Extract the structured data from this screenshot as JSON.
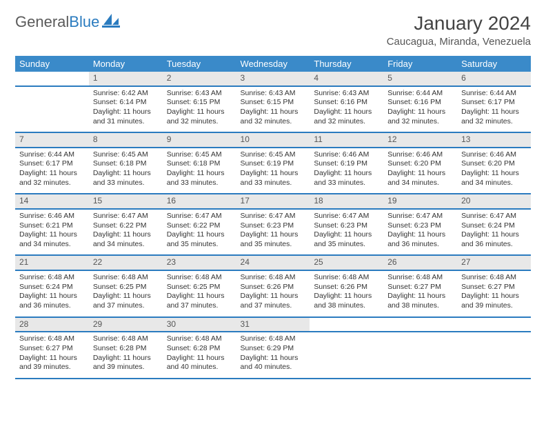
{
  "logo": {
    "word1": "General",
    "word2": "Blue"
  },
  "title": "January 2024",
  "location": "Caucagua, Miranda, Venezuela",
  "header_bg": "#3a8ac9",
  "accent_line": "#2a7bbf",
  "grey_bg": "#e8e8e8",
  "day_headers": [
    "Sunday",
    "Monday",
    "Tuesday",
    "Wednesday",
    "Thursday",
    "Friday",
    "Saturday"
  ],
  "font_size_body": 10.5,
  "font_size_header": 13,
  "weeks": [
    {
      "nums": [
        "",
        "1",
        "2",
        "3",
        "4",
        "5",
        "6"
      ],
      "cells": [
        null,
        {
          "sunrise": "6:42 AM",
          "sunset": "6:14 PM",
          "daylight": "11 hours and 31 minutes."
        },
        {
          "sunrise": "6:43 AM",
          "sunset": "6:15 PM",
          "daylight": "11 hours and 32 minutes."
        },
        {
          "sunrise": "6:43 AM",
          "sunset": "6:15 PM",
          "daylight": "11 hours and 32 minutes."
        },
        {
          "sunrise": "6:43 AM",
          "sunset": "6:16 PM",
          "daylight": "11 hours and 32 minutes."
        },
        {
          "sunrise": "6:44 AM",
          "sunset": "6:16 PM",
          "daylight": "11 hours and 32 minutes."
        },
        {
          "sunrise": "6:44 AM",
          "sunset": "6:17 PM",
          "daylight": "11 hours and 32 minutes."
        }
      ]
    },
    {
      "nums": [
        "7",
        "8",
        "9",
        "10",
        "11",
        "12",
        "13"
      ],
      "cells": [
        {
          "sunrise": "6:44 AM",
          "sunset": "6:17 PM",
          "daylight": "11 hours and 32 minutes."
        },
        {
          "sunrise": "6:45 AM",
          "sunset": "6:18 PM",
          "daylight": "11 hours and 33 minutes."
        },
        {
          "sunrise": "6:45 AM",
          "sunset": "6:18 PM",
          "daylight": "11 hours and 33 minutes."
        },
        {
          "sunrise": "6:45 AM",
          "sunset": "6:19 PM",
          "daylight": "11 hours and 33 minutes."
        },
        {
          "sunrise": "6:46 AM",
          "sunset": "6:19 PM",
          "daylight": "11 hours and 33 minutes."
        },
        {
          "sunrise": "6:46 AM",
          "sunset": "6:20 PM",
          "daylight": "11 hours and 34 minutes."
        },
        {
          "sunrise": "6:46 AM",
          "sunset": "6:20 PM",
          "daylight": "11 hours and 34 minutes."
        }
      ]
    },
    {
      "nums": [
        "14",
        "15",
        "16",
        "17",
        "18",
        "19",
        "20"
      ],
      "cells": [
        {
          "sunrise": "6:46 AM",
          "sunset": "6:21 PM",
          "daylight": "11 hours and 34 minutes."
        },
        {
          "sunrise": "6:47 AM",
          "sunset": "6:22 PM",
          "daylight": "11 hours and 34 minutes."
        },
        {
          "sunrise": "6:47 AM",
          "sunset": "6:22 PM",
          "daylight": "11 hours and 35 minutes."
        },
        {
          "sunrise": "6:47 AM",
          "sunset": "6:23 PM",
          "daylight": "11 hours and 35 minutes."
        },
        {
          "sunrise": "6:47 AM",
          "sunset": "6:23 PM",
          "daylight": "11 hours and 35 minutes."
        },
        {
          "sunrise": "6:47 AM",
          "sunset": "6:23 PM",
          "daylight": "11 hours and 36 minutes."
        },
        {
          "sunrise": "6:47 AM",
          "sunset": "6:24 PM",
          "daylight": "11 hours and 36 minutes."
        }
      ]
    },
    {
      "nums": [
        "21",
        "22",
        "23",
        "24",
        "25",
        "26",
        "27"
      ],
      "cells": [
        {
          "sunrise": "6:48 AM",
          "sunset": "6:24 PM",
          "daylight": "11 hours and 36 minutes."
        },
        {
          "sunrise": "6:48 AM",
          "sunset": "6:25 PM",
          "daylight": "11 hours and 37 minutes."
        },
        {
          "sunrise": "6:48 AM",
          "sunset": "6:25 PM",
          "daylight": "11 hours and 37 minutes."
        },
        {
          "sunrise": "6:48 AM",
          "sunset": "6:26 PM",
          "daylight": "11 hours and 37 minutes."
        },
        {
          "sunrise": "6:48 AM",
          "sunset": "6:26 PM",
          "daylight": "11 hours and 38 minutes."
        },
        {
          "sunrise": "6:48 AM",
          "sunset": "6:27 PM",
          "daylight": "11 hours and 38 minutes."
        },
        {
          "sunrise": "6:48 AM",
          "sunset": "6:27 PM",
          "daylight": "11 hours and 39 minutes."
        }
      ]
    },
    {
      "nums": [
        "28",
        "29",
        "30",
        "31",
        "",
        "",
        ""
      ],
      "cells": [
        {
          "sunrise": "6:48 AM",
          "sunset": "6:27 PM",
          "daylight": "11 hours and 39 minutes."
        },
        {
          "sunrise": "6:48 AM",
          "sunset": "6:28 PM",
          "daylight": "11 hours and 39 minutes."
        },
        {
          "sunrise": "6:48 AM",
          "sunset": "6:28 PM",
          "daylight": "11 hours and 40 minutes."
        },
        {
          "sunrise": "6:48 AM",
          "sunset": "6:29 PM",
          "daylight": "11 hours and 40 minutes."
        },
        null,
        null,
        null
      ]
    }
  ],
  "labels": {
    "sunrise": "Sunrise:",
    "sunset": "Sunset:",
    "daylight": "Daylight:"
  }
}
